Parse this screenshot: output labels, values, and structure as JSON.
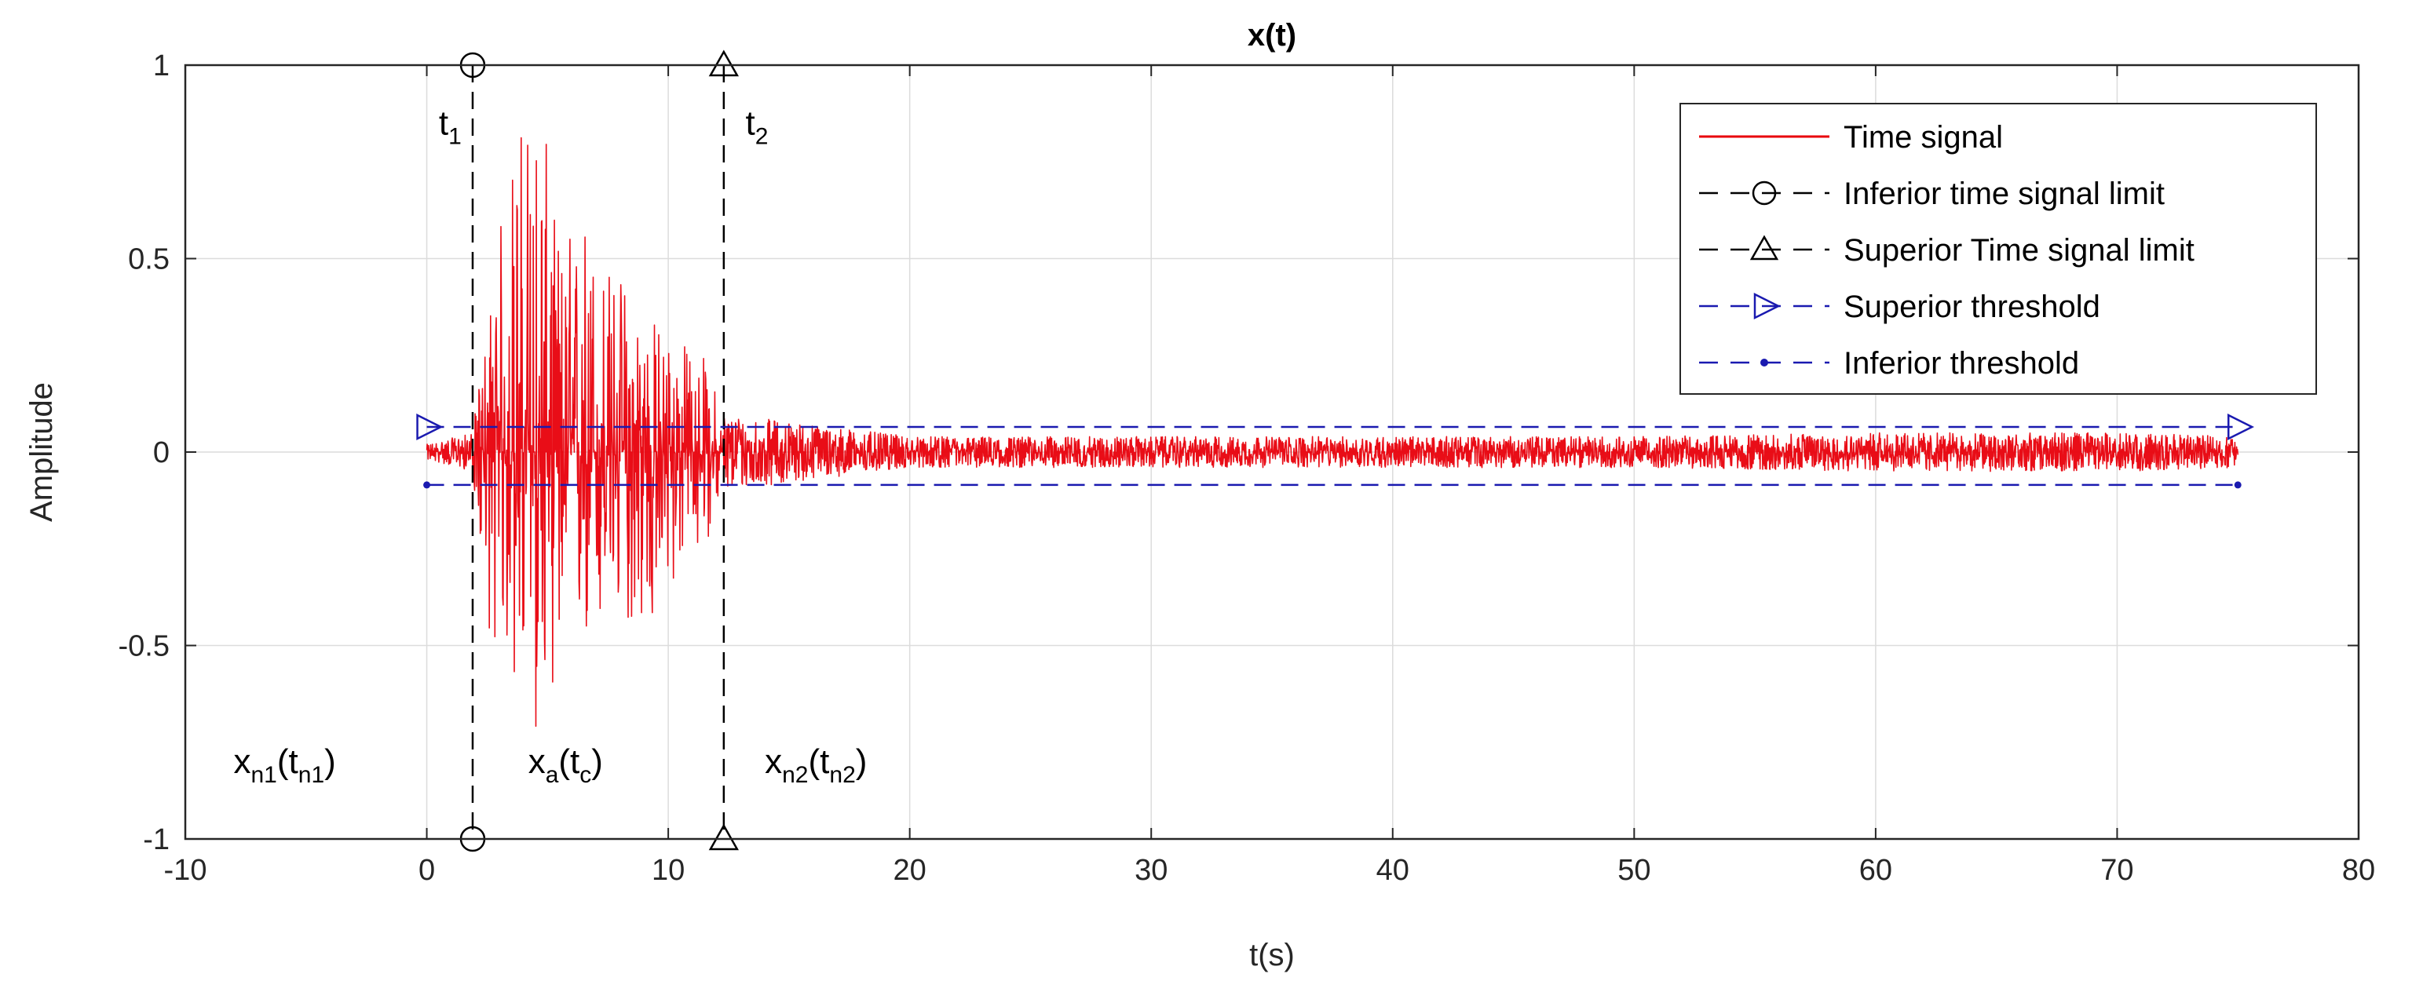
{
  "chart_data": {
    "type": "line",
    "title": "x(t)",
    "xlabel": "t(s)",
    "ylabel": "Amplitude",
    "xlim": [
      -10,
      80
    ],
    "ylim": [
      -1,
      1
    ],
    "xticks": [
      -10,
      0,
      10,
      20,
      30,
      40,
      50,
      60,
      70,
      80
    ],
    "yticks": [
      -1,
      -0.5,
      0,
      0.5,
      1
    ],
    "xtick_labels": [
      "-10",
      "0",
      "10",
      "20",
      "30",
      "40",
      "50",
      "60",
      "70",
      "80"
    ],
    "ytick_labels": [
      "-1",
      "-0.5",
      "0",
      "0.5",
      "1"
    ],
    "grid": true,
    "legend_position": "top-right",
    "series": [
      {
        "name": "Time signal",
        "color": "#e8000b",
        "signal_duration": [
          0,
          75
        ],
        "x": [
          0,
          1.9,
          2.5,
          3.5,
          4.5,
          5.5,
          6.5,
          7.5,
          8.5,
          9.5,
          10.5,
          11.5,
          12.3,
          20,
          30,
          40,
          50,
          60,
          70,
          75
        ],
        "y_max": [
          0.02,
          0.05,
          0.35,
          0.8,
          1.0,
          0.55,
          0.65,
          0.5,
          0.45,
          0.35,
          0.3,
          0.25,
          0.1,
          0.04,
          0.04,
          0.04,
          0.04,
          0.05,
          0.05,
          0.04
        ],
        "y_min": [
          -0.02,
          -0.05,
          -0.45,
          -0.6,
          -0.75,
          -0.55,
          -0.55,
          -0.5,
          -0.45,
          -0.5,
          -0.3,
          -0.25,
          -0.1,
          -0.04,
          -0.04,
          -0.04,
          -0.04,
          -0.05,
          -0.05,
          -0.04
        ]
      },
      {
        "name": "Inferior time signal limit",
        "color": "#000000",
        "marker": "circle",
        "x": 1.9
      },
      {
        "name": "Superior Time signal limit",
        "color": "#000000",
        "marker": "triangle-up",
        "x": 12.3
      },
      {
        "name": "Superior threshold",
        "color": "#1a1ab0",
        "marker": "triangle-right",
        "y": 0.065,
        "x_range": [
          0,
          75
        ]
      },
      {
        "name": "Inferior threshold",
        "color": "#1a1ab0",
        "marker": "dot",
        "y": -0.085,
        "x_range": [
          0,
          75
        ]
      }
    ],
    "annotations": [
      {
        "base": "t",
        "sub": "1",
        "x": 0.5,
        "y": 0.82
      },
      {
        "base": "t",
        "sub": "2",
        "x": 13.2,
        "y": 0.82
      },
      {
        "parts": [
          [
            "x",
            ""
          ],
          [
            "n1",
            "sub"
          ],
          [
            "(t",
            ""
          ],
          [
            "n1",
            "sub"
          ],
          [
            ")",
            ""
          ]
        ],
        "x": -8,
        "y": -0.83
      },
      {
        "parts": [
          [
            "x",
            ""
          ],
          [
            "a",
            "sub"
          ],
          [
            "(t",
            ""
          ],
          [
            "c",
            "sub"
          ],
          [
            ")",
            ""
          ]
        ],
        "x": 4.2,
        "y": -0.83
      },
      {
        "parts": [
          [
            "x",
            ""
          ],
          [
            "n2",
            "sub"
          ],
          [
            "(t",
            ""
          ],
          [
            "n2",
            "sub"
          ],
          [
            ")",
            ""
          ]
        ],
        "x": 14,
        "y": -0.83
      }
    ]
  }
}
